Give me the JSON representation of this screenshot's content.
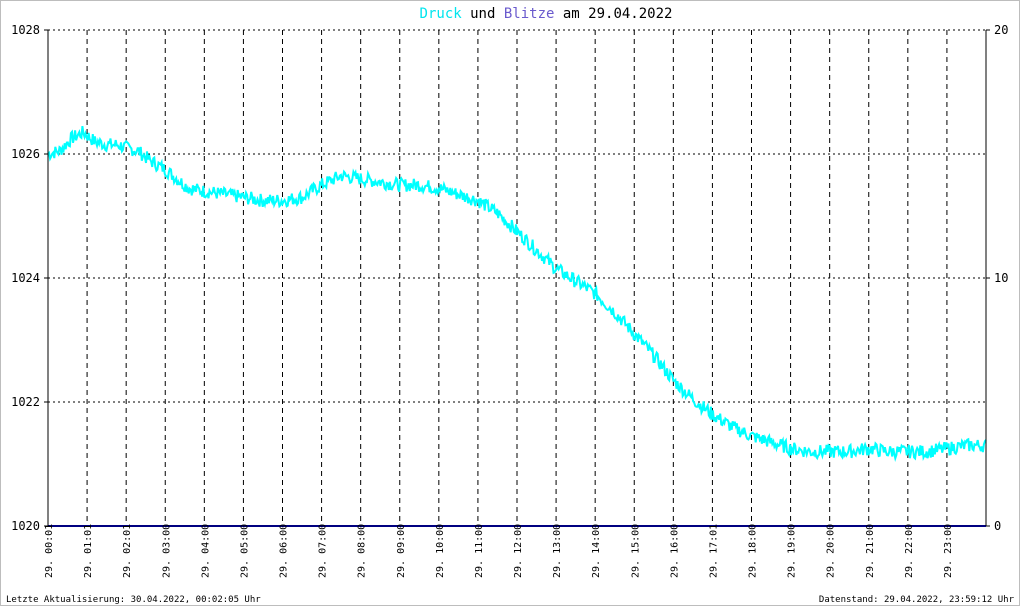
{
  "title": {
    "part1": "Druck",
    "part2": " und ",
    "part3": "Blitze",
    "part4": " am 29.04.2022",
    "color1": "#00e5ee",
    "color3": "#6a5acd"
  },
  "footer": {
    "left": "Letzte Aktualisierung: 30.04.2022, 00:02:05 Uhr",
    "right": "Datenstand: 29.04.2022, 23:59:12 Uhr"
  },
  "chart_data": {
    "type": "line",
    "grid": true,
    "y_left": {
      "ylim": [
        1020,
        1028
      ],
      "ticks": [
        "1020",
        "1022",
        "1024",
        "1026",
        "1028"
      ]
    },
    "y_right": {
      "ylim": [
        0,
        20
      ],
      "ticks": [
        "0",
        "10",
        "20"
      ]
    },
    "xlim_hours": [
      0,
      24
    ],
    "x_ticks": [
      {
        "h": 1.0,
        "label": "29. 01:01"
      },
      {
        "h": 2.0,
        "label": "29. 02:01"
      },
      {
        "h": 3.0,
        "label": "29. 03:00"
      },
      {
        "h": 4.0,
        "label": "29. 04:00"
      },
      {
        "h": 5.0,
        "label": "29. 05:00"
      },
      {
        "h": 6.0,
        "label": "29. 06:00"
      },
      {
        "h": 7.0,
        "label": "29. 07:00"
      },
      {
        "h": 8.0,
        "label": "29. 08:00"
      },
      {
        "h": 9.0,
        "label": "29. 09:00"
      },
      {
        "h": 10.0,
        "label": "29. 10:00"
      },
      {
        "h": 11.0,
        "label": "29. 11:00"
      },
      {
        "h": 12.0,
        "label": "29. 12:00"
      },
      {
        "h": 13.0,
        "label": "29. 13:00"
      },
      {
        "h": 14.0,
        "label": "29. 14:00"
      },
      {
        "h": 15.0,
        "label": "29. 15:00"
      },
      {
        "h": 16.0,
        "label": "29. 16:00"
      },
      {
        "h": 17.0,
        "label": "29. 17:01"
      },
      {
        "h": 18.0,
        "label": "29. 18:00"
      },
      {
        "h": 19.0,
        "label": "29. 19:00"
      },
      {
        "h": 20.0,
        "label": "29. 20:00"
      },
      {
        "h": 21.0,
        "label": "29. 21:00"
      },
      {
        "h": 22.0,
        "label": "29. 22:00"
      },
      {
        "h": 23.0,
        "label": "29. 23:00"
      }
    ],
    "first_label": {
      "h": 0.0,
      "label": "29. 00:01"
    },
    "series": [
      {
        "color": "#00ffff",
        "axis": "left",
        "x": [
          0.0,
          0.3,
          0.6,
          0.9,
          1.2,
          1.5,
          1.8,
          2.0,
          2.3,
          2.6,
          3.0,
          3.3,
          3.6,
          4.0,
          4.5,
          5.0,
          5.5,
          6.0,
          6.5,
          7.0,
          7.5,
          8.0,
          8.5,
          9.0,
          9.5,
          10.0,
          10.5,
          11.0,
          11.5,
          12.0,
          12.5,
          13.0,
          13.5,
          14.0,
          14.5,
          15.0,
          15.5,
          16.0,
          16.5,
          17.0,
          17.5,
          18.0,
          18.5,
          19.0,
          19.5,
          20.0,
          20.5,
          21.0,
          21.5,
          22.0,
          22.5,
          23.0,
          23.5,
          24.0
        ],
        "values": [
          1026.0,
          1026.05,
          1026.25,
          1026.35,
          1026.2,
          1026.15,
          1026.15,
          1026.1,
          1026.05,
          1025.9,
          1025.75,
          1025.6,
          1025.45,
          1025.4,
          1025.35,
          1025.3,
          1025.25,
          1025.25,
          1025.3,
          1025.5,
          1025.65,
          1025.6,
          1025.55,
          1025.5,
          1025.5,
          1025.45,
          1025.35,
          1025.25,
          1025.05,
          1024.75,
          1024.45,
          1024.15,
          1023.95,
          1023.75,
          1023.45,
          1023.1,
          1022.75,
          1022.35,
          1022.05,
          1021.8,
          1021.6,
          1021.45,
          1021.35,
          1021.25,
          1021.2,
          1021.2,
          1021.2,
          1021.25,
          1021.2,
          1021.2,
          1021.2,
          1021.25,
          1021.3,
          1021.3
        ]
      },
      {
        "color": "#000080",
        "axis": "right",
        "x": [
          0,
          24
        ],
        "values": [
          0,
          0
        ]
      }
    ]
  }
}
